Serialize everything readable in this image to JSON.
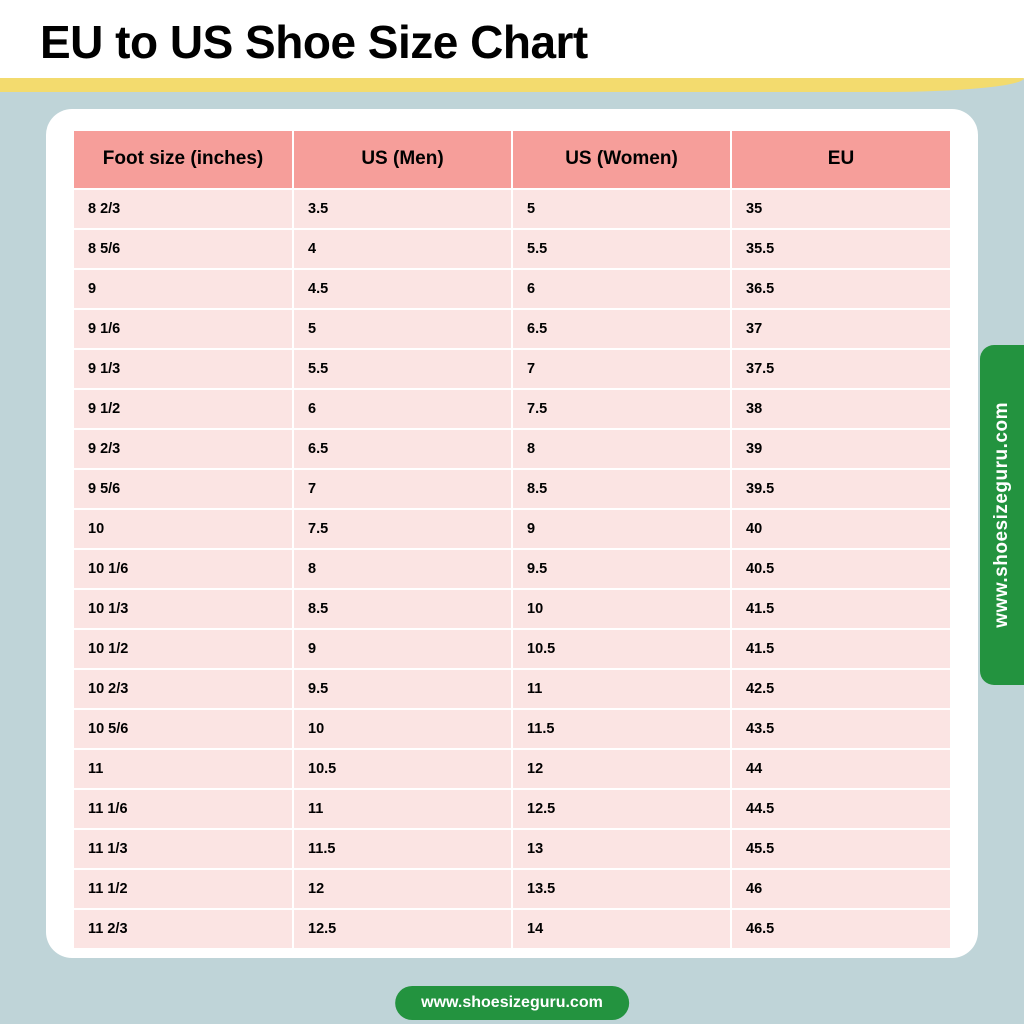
{
  "title": "EU to US Shoe Size Chart",
  "website": "www.shoesizeguru.com",
  "colors": {
    "page_bg": "#bfd4d8",
    "card_bg": "#ffffff",
    "swoosh": "#f3db6e",
    "header_cell": "#f69e9a",
    "body_cell": "#fbe4e3",
    "grid_line": "#ffffff",
    "accent_green": "#23933f",
    "title_color": "#000000",
    "text_color": "#000000"
  },
  "typography": {
    "title_fontsize": 46,
    "title_weight": 900,
    "header_fontsize": 19,
    "header_weight": 700,
    "cell_fontsize": 14.5,
    "cell_weight": 700,
    "badge_fontsize": 16
  },
  "table": {
    "type": "table",
    "columns": [
      "Foot size (inches)",
      "US (Men)",
      "US (Women)",
      "EU"
    ],
    "column_align": [
      "left",
      "left",
      "left",
      "left"
    ],
    "rows": [
      [
        "8 2/3",
        "3.5",
        "5",
        "35"
      ],
      [
        "8 5/6",
        "4",
        "5.5",
        "35.5"
      ],
      [
        "9",
        "4.5",
        "6",
        "36.5"
      ],
      [
        "9 1/6",
        "5",
        "6.5",
        "37"
      ],
      [
        "9 1/3",
        "5.5",
        "7",
        "37.5"
      ],
      [
        "9 1/2",
        "6",
        "7.5",
        "38"
      ],
      [
        "9 2/3",
        "6.5",
        "8",
        "39"
      ],
      [
        "9 5/6",
        "7",
        "8.5",
        "39.5"
      ],
      [
        "10",
        "7.5",
        "9",
        "40"
      ],
      [
        "10 1/6",
        "8",
        "9.5",
        "40.5"
      ],
      [
        "10 1/3",
        "8.5",
        "10",
        "41.5"
      ],
      [
        "10 1/2",
        "9",
        "10.5",
        "41.5"
      ],
      [
        "10 2/3",
        "9.5",
        "11",
        "42.5"
      ],
      [
        "10 5/6",
        "10",
        "11.5",
        "43.5"
      ],
      [
        "11",
        "10.5",
        "12",
        "44"
      ],
      [
        "11 1/6",
        "11",
        "12.5",
        "44.5"
      ],
      [
        "11 1/3",
        "11.5",
        "13",
        "45.5"
      ],
      [
        "11 1/2",
        "12",
        "13.5",
        "46"
      ],
      [
        "11 2/3",
        "12.5",
        "14",
        "46.5"
      ]
    ]
  }
}
